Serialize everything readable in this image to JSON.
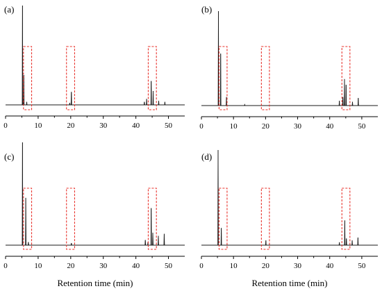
{
  "chart_data": [
    {
      "type": "line",
      "panel_label": "(a)",
      "xlabel": "",
      "ylabel": "",
      "xlim": [
        0,
        55
      ],
      "x_ticks": [
        0,
        10,
        20,
        30,
        40,
        50
      ],
      "y_axis": "hidden",
      "grid": false,
      "peaks": [
        {
          "x": 5.2,
          "height": 1.0
        },
        {
          "x": 5.6,
          "height": 0.3
        },
        {
          "x": 6.5,
          "height": 0.03
        },
        {
          "x": 20.2,
          "height": 0.13
        },
        {
          "x": 19.7,
          "height": 0.02
        },
        {
          "x": 42.6,
          "height": 0.03
        },
        {
          "x": 43.3,
          "height": 0.06
        },
        {
          "x": 44.7,
          "height": 0.24
        },
        {
          "x": 45.3,
          "height": 0.14
        },
        {
          "x": 47.0,
          "height": 0.04
        },
        {
          "x": 48.9,
          "height": 0.03
        }
      ],
      "highlight_regions": [
        [
          5.5,
          8.0
        ],
        [
          18.7,
          21.2
        ],
        [
          43.8,
          46.3
        ]
      ]
    },
    {
      "type": "line",
      "panel_label": "(b)",
      "xlabel": "",
      "ylabel": "",
      "xlim": [
        0,
        55
      ],
      "x_ticks": [
        0,
        10,
        20,
        30,
        40,
        50
      ],
      "y_axis": "hidden",
      "grid": false,
      "peaks": [
        {
          "x": 5.3,
          "height": 1.0
        },
        {
          "x": 6.0,
          "height": 0.55
        },
        {
          "x": 7.8,
          "height": 0.09
        },
        {
          "x": 13.5,
          "height": 0.01
        },
        {
          "x": 43.0,
          "height": 0.05
        },
        {
          "x": 44.1,
          "height": 0.09
        },
        {
          "x": 44.6,
          "height": 0.28
        },
        {
          "x": 45.1,
          "height": 0.22
        },
        {
          "x": 47.1,
          "height": 0.04
        },
        {
          "x": 48.9,
          "height": 0.08
        }
      ],
      "highlight_regions": [
        [
          5.5,
          8.0
        ],
        [
          18.7,
          21.2
        ],
        [
          43.8,
          46.3
        ]
      ]
    },
    {
      "type": "line",
      "panel_label": "(c)",
      "xlabel": "Retention time (min)",
      "ylabel": "",
      "xlim": [
        0,
        55
      ],
      "x_ticks": [
        0,
        10,
        20,
        30,
        40,
        50
      ],
      "y_axis": "hidden",
      "grid": false,
      "peaks": [
        {
          "x": 5.2,
          "height": 1.0
        },
        {
          "x": 6.2,
          "height": 0.46
        },
        {
          "x": 7.0,
          "height": 0.03
        },
        {
          "x": 20.2,
          "height": 0.02
        },
        {
          "x": 42.9,
          "height": 0.05
        },
        {
          "x": 43.7,
          "height": 0.03
        },
        {
          "x": 44.7,
          "height": 0.36
        },
        {
          "x": 45.2,
          "height": 0.12
        },
        {
          "x": 46.9,
          "height": 0.09
        },
        {
          "x": 48.7,
          "height": 0.11
        }
      ],
      "highlight_regions": [
        [
          5.5,
          8.0
        ],
        [
          18.7,
          21.2
        ],
        [
          43.8,
          46.3
        ]
      ]
    },
    {
      "type": "line",
      "panel_label": "(d)",
      "xlabel": "Retention time (min)",
      "ylabel": "",
      "xlim": [
        0,
        55
      ],
      "x_ticks": [
        0,
        10,
        20,
        30,
        40,
        50
      ],
      "y_axis": "hidden",
      "grid": false,
      "peaks": [
        {
          "x": 5.2,
          "height": 1.0
        },
        {
          "x": 6.2,
          "height": 0.18
        },
        {
          "x": 20.1,
          "height": 0.05
        },
        {
          "x": 43.0,
          "height": 0.03
        },
        {
          "x": 44.7,
          "height": 0.26
        },
        {
          "x": 45.2,
          "height": 0.07
        },
        {
          "x": 47.0,
          "height": 0.05
        },
        {
          "x": 48.8,
          "height": 0.08
        }
      ],
      "highlight_regions": [
        [
          5.5,
          8.0
        ],
        [
          18.7,
          21.2
        ],
        [
          43.8,
          46.3
        ]
      ]
    }
  ]
}
